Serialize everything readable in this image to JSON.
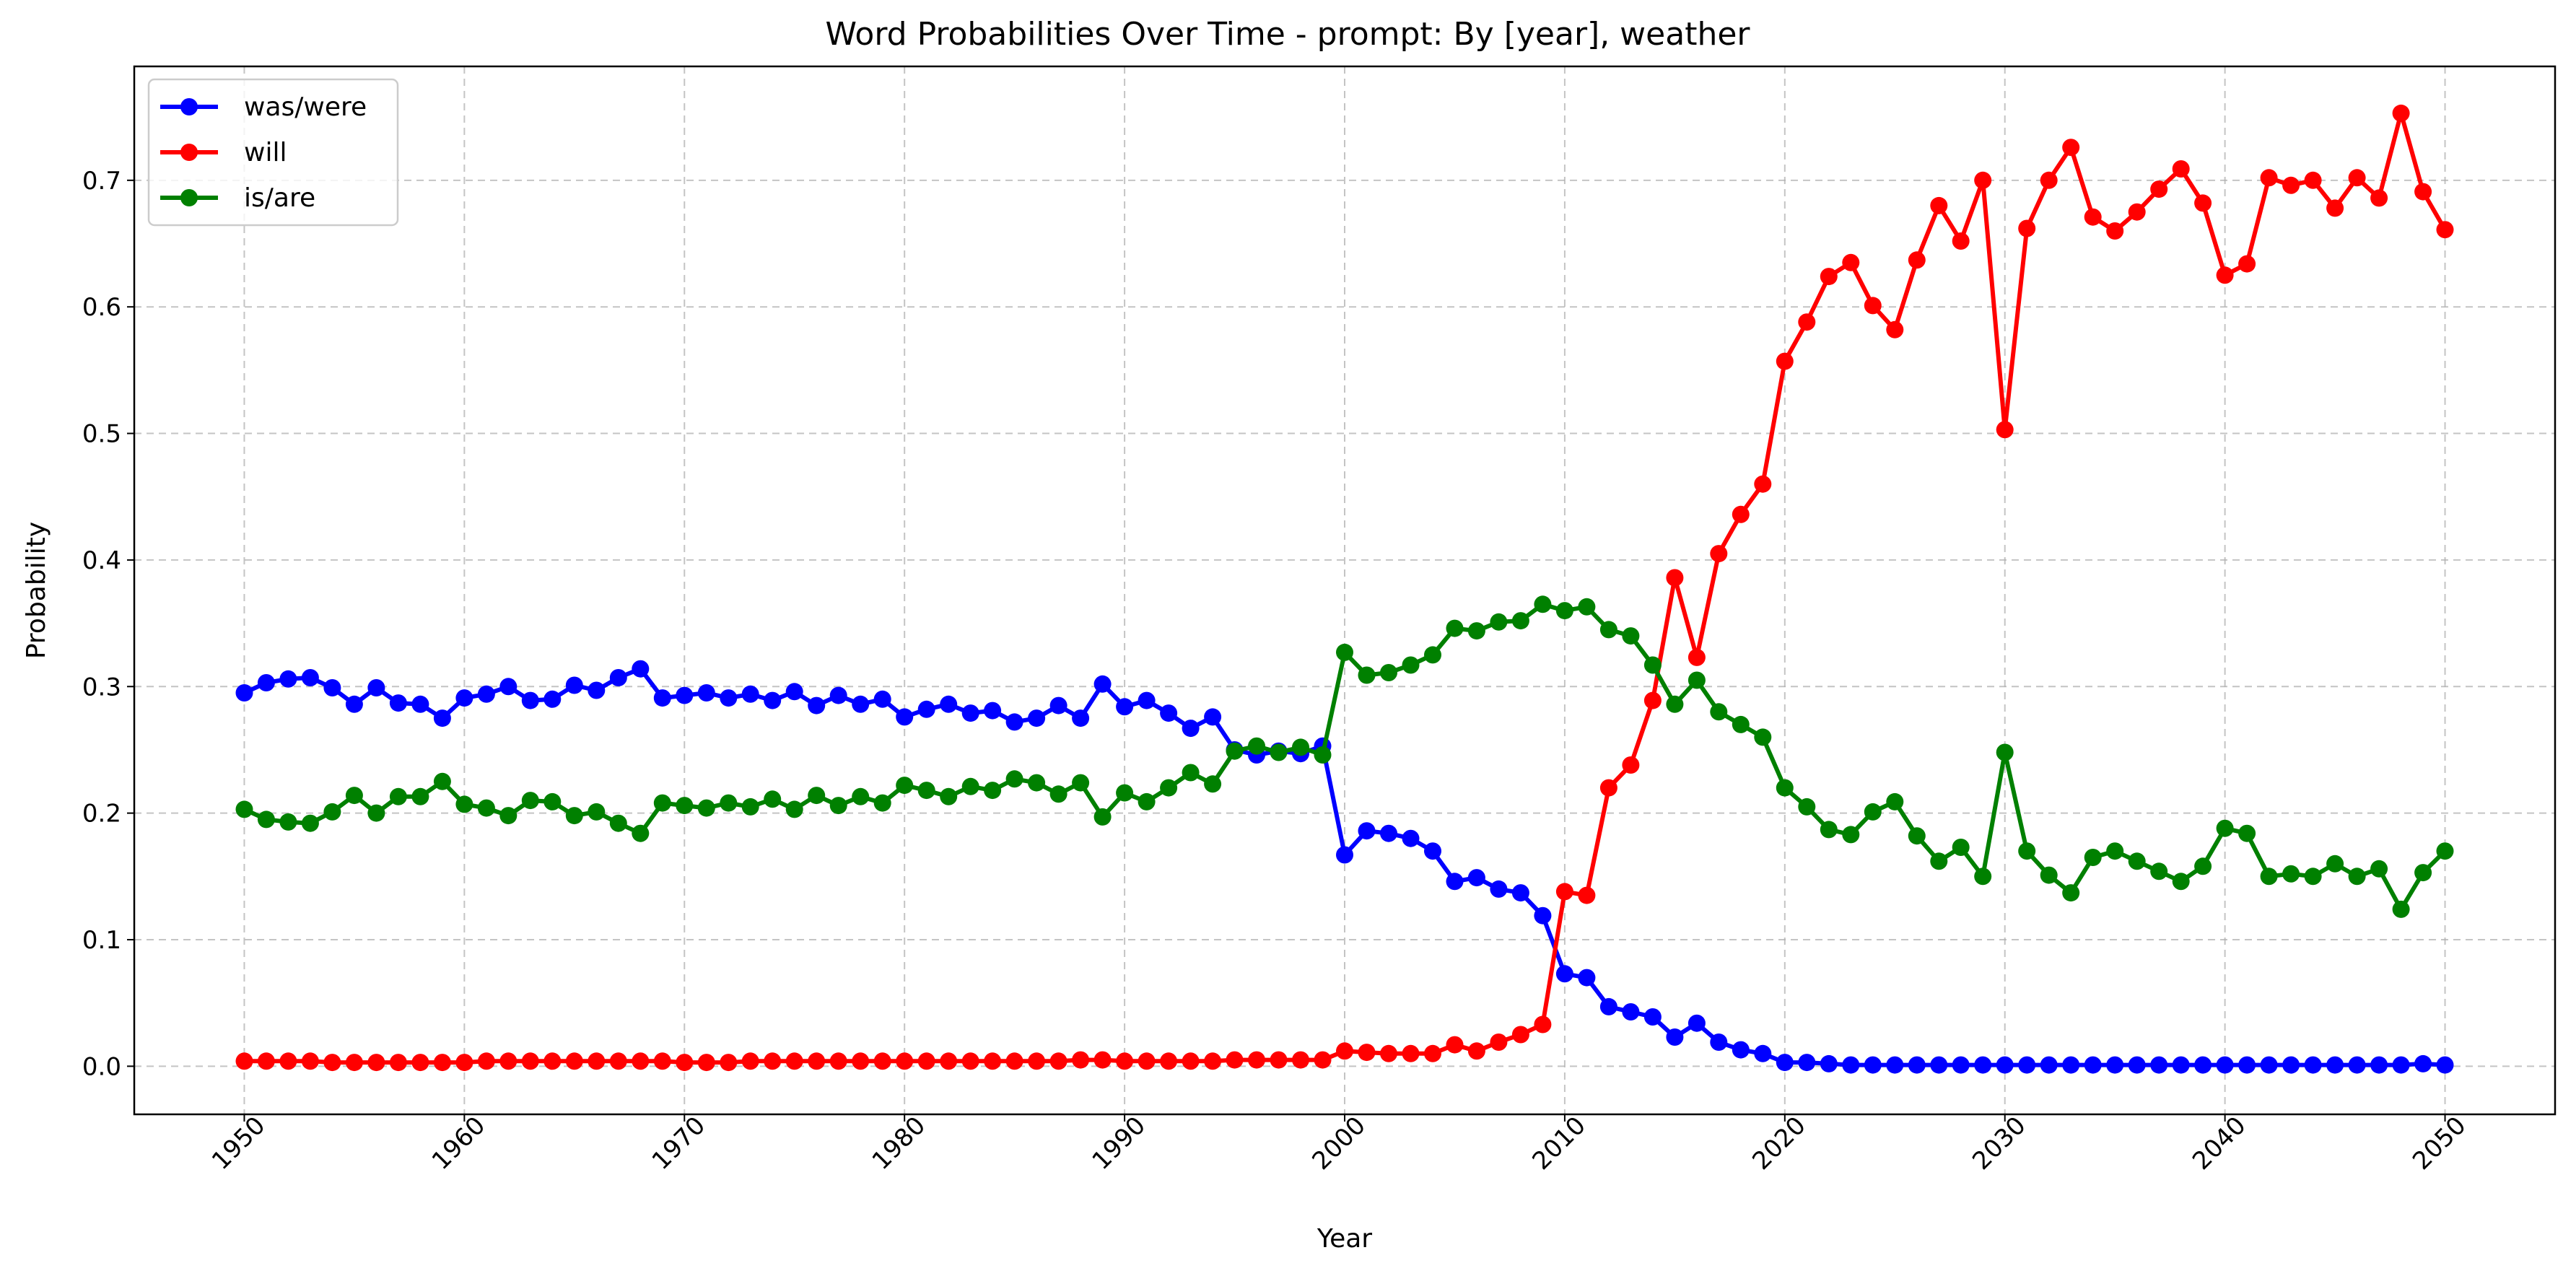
{
  "chart_data": {
    "type": "line",
    "title": "Word Probabilities Over Time - prompt: By [year], weather",
    "xlabel": "Year",
    "ylabel": "Probability",
    "xlim": [
      1945,
      2055
    ],
    "ylim": [
      -0.038,
      0.79
    ],
    "xticks": [
      1950,
      1960,
      1970,
      1980,
      1990,
      2000,
      2010,
      2020,
      2030,
      2040,
      2050
    ],
    "yticks": [
      0.0,
      0.1,
      0.2,
      0.3,
      0.4,
      0.5,
      0.6,
      0.7
    ],
    "grid": true,
    "legend_position": "upper-left",
    "x": [
      1950,
      1951,
      1952,
      1953,
      1954,
      1955,
      1956,
      1957,
      1958,
      1959,
      1960,
      1961,
      1962,
      1963,
      1964,
      1965,
      1966,
      1967,
      1968,
      1969,
      1970,
      1971,
      1972,
      1973,
      1974,
      1975,
      1976,
      1977,
      1978,
      1979,
      1980,
      1981,
      1982,
      1983,
      1984,
      1985,
      1986,
      1987,
      1988,
      1989,
      1990,
      1991,
      1992,
      1993,
      1994,
      1995,
      1996,
      1997,
      1998,
      1999,
      2000,
      2001,
      2002,
      2003,
      2004,
      2005,
      2006,
      2007,
      2008,
      2009,
      2010,
      2011,
      2012,
      2013,
      2014,
      2015,
      2016,
      2017,
      2018,
      2019,
      2020,
      2021,
      2022,
      2023,
      2024,
      2025,
      2026,
      2027,
      2028,
      2029,
      2030,
      2031,
      2032,
      2033,
      2034,
      2035,
      2036,
      2037,
      2038,
      2039,
      2040,
      2041,
      2042,
      2043,
      2044,
      2045,
      2046,
      2047,
      2048,
      2049,
      2050
    ],
    "series": [
      {
        "name": "was/were",
        "color": "#0000ff",
        "values": [
          0.295,
          0.303,
          0.306,
          0.307,
          0.299,
          0.286,
          0.299,
          0.287,
          0.286,
          0.275,
          0.291,
          0.294,
          0.3,
          0.289,
          0.29,
          0.301,
          0.297,
          0.307,
          0.314,
          0.291,
          0.293,
          0.295,
          0.291,
          0.294,
          0.289,
          0.296,
          0.285,
          0.293,
          0.286,
          0.29,
          0.276,
          0.282,
          0.286,
          0.279,
          0.281,
          0.272,
          0.275,
          0.285,
          0.275,
          0.302,
          0.284,
          0.289,
          0.279,
          0.267,
          0.276,
          0.25,
          0.246,
          0.249,
          0.247,
          0.253,
          0.167,
          0.186,
          0.184,
          0.18,
          0.17,
          0.146,
          0.149,
          0.14,
          0.137,
          0.119,
          0.073,
          0.07,
          0.047,
          0.043,
          0.039,
          0.023,
          0.034,
          0.019,
          0.013,
          0.01,
          0.003,
          0.003,
          0.002,
          0.001,
          0.001,
          0.001,
          0.001,
          0.001,
          0.001,
          0.001,
          0.001,
          0.001,
          0.001,
          0.001,
          0.001,
          0.001,
          0.001,
          0.001,
          0.001,
          0.001,
          0.001,
          0.001,
          0.001,
          0.001,
          0.001,
          0.001,
          0.001,
          0.001,
          0.001,
          0.002,
          0.001
        ]
      },
      {
        "name": "will",
        "color": "#ff0000",
        "values": [
          0.004,
          0.004,
          0.004,
          0.004,
          0.003,
          0.003,
          0.003,
          0.003,
          0.003,
          0.003,
          0.003,
          0.004,
          0.004,
          0.004,
          0.004,
          0.004,
          0.004,
          0.004,
          0.004,
          0.004,
          0.003,
          0.003,
          0.003,
          0.004,
          0.004,
          0.004,
          0.004,
          0.004,
          0.004,
          0.004,
          0.004,
          0.004,
          0.004,
          0.004,
          0.004,
          0.004,
          0.004,
          0.004,
          0.005,
          0.005,
          0.004,
          0.004,
          0.004,
          0.004,
          0.004,
          0.005,
          0.005,
          0.005,
          0.005,
          0.005,
          0.012,
          0.011,
          0.01,
          0.01,
          0.01,
          0.017,
          0.012,
          0.019,
          0.025,
          0.033,
          0.138,
          0.135,
          0.22,
          0.238,
          0.289,
          0.386,
          0.323,
          0.405,
          0.436,
          0.46,
          0.557,
          0.588,
          0.624,
          0.635,
          0.601,
          0.582,
          0.637,
          0.68,
          0.652,
          0.7,
          0.503,
          0.662,
          0.7,
          0.726,
          0.671,
          0.66,
          0.675,
          0.693,
          0.709,
          0.682,
          0.625,
          0.634,
          0.702,
          0.696,
          0.7,
          0.678,
          0.702,
          0.686,
          0.753,
          0.691,
          0.661
        ]
      },
      {
        "name": "is/are",
        "color": "#008000",
        "values": [
          0.203,
          0.195,
          0.193,
          0.192,
          0.201,
          0.214,
          0.2,
          0.213,
          0.213,
          0.225,
          0.207,
          0.204,
          0.198,
          0.21,
          0.209,
          0.198,
          0.201,
          0.192,
          0.184,
          0.208,
          0.206,
          0.204,
          0.208,
          0.205,
          0.211,
          0.203,
          0.214,
          0.206,
          0.213,
          0.208,
          0.222,
          0.218,
          0.213,
          0.221,
          0.218,
          0.227,
          0.224,
          0.215,
          0.224,
          0.197,
          0.216,
          0.209,
          0.22,
          0.232,
          0.223,
          0.249,
          0.253,
          0.248,
          0.252,
          0.246,
          0.327,
          0.309,
          0.311,
          0.317,
          0.325,
          0.346,
          0.344,
          0.351,
          0.352,
          0.365,
          0.36,
          0.363,
          0.345,
          0.34,
          0.317,
          0.286,
          0.305,
          0.28,
          0.27,
          0.26,
          0.22,
          0.205,
          0.187,
          0.183,
          0.201,
          0.209,
          0.182,
          0.162,
          0.173,
          0.15,
          0.248,
          0.17,
          0.151,
          0.137,
          0.165,
          0.17,
          0.162,
          0.154,
          0.146,
          0.158,
          0.188,
          0.184,
          0.15,
          0.152,
          0.15,
          0.16,
          0.15,
          0.156,
          0.124,
          0.153,
          0.17
        ]
      }
    ]
  }
}
